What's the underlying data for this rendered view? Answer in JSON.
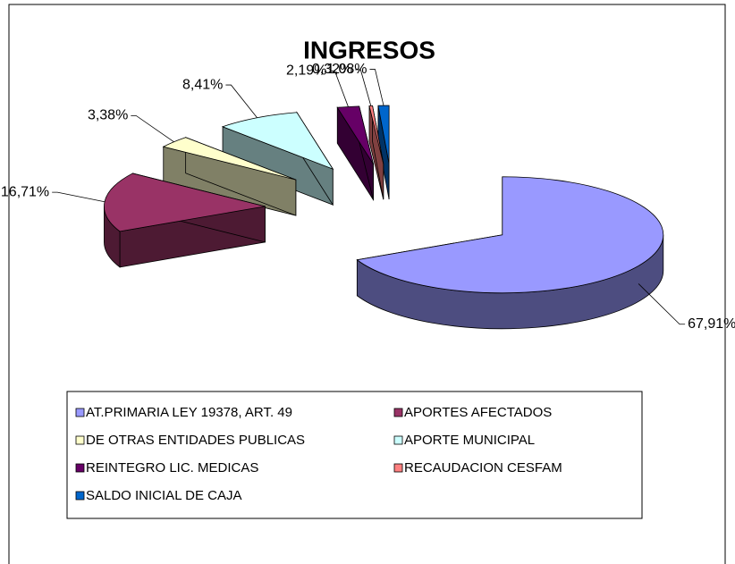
{
  "chart_data": {
    "type": "pie3d",
    "title": "INGRESOS",
    "categories": [
      "AT.PRIMARIA LEY 19378, ART. 49",
      "APORTES AFECTADOS",
      "DE OTRAS ENTIDADES PUBLICAS",
      "APORTE MUNICIPAL",
      "REINTEGRO LIC. MEDICAS",
      "RECAUDACION CESFAM",
      "SALDO INICIAL DE CAJA"
    ],
    "values": [
      67.91,
      16.71,
      3.38,
      8.41,
      2.19,
      0.32,
      1.08
    ],
    "value_labels": [
      "67,91%",
      "16,71%",
      "3,38%",
      "8,41%",
      "2,19%",
      "0,32%",
      "1,08%"
    ],
    "colors": [
      "#9999ff",
      "#993366",
      "#ffffcc",
      "#ccffff",
      "#660066",
      "#ff8080",
      "#0066cc"
    ],
    "legend": "bottom"
  }
}
